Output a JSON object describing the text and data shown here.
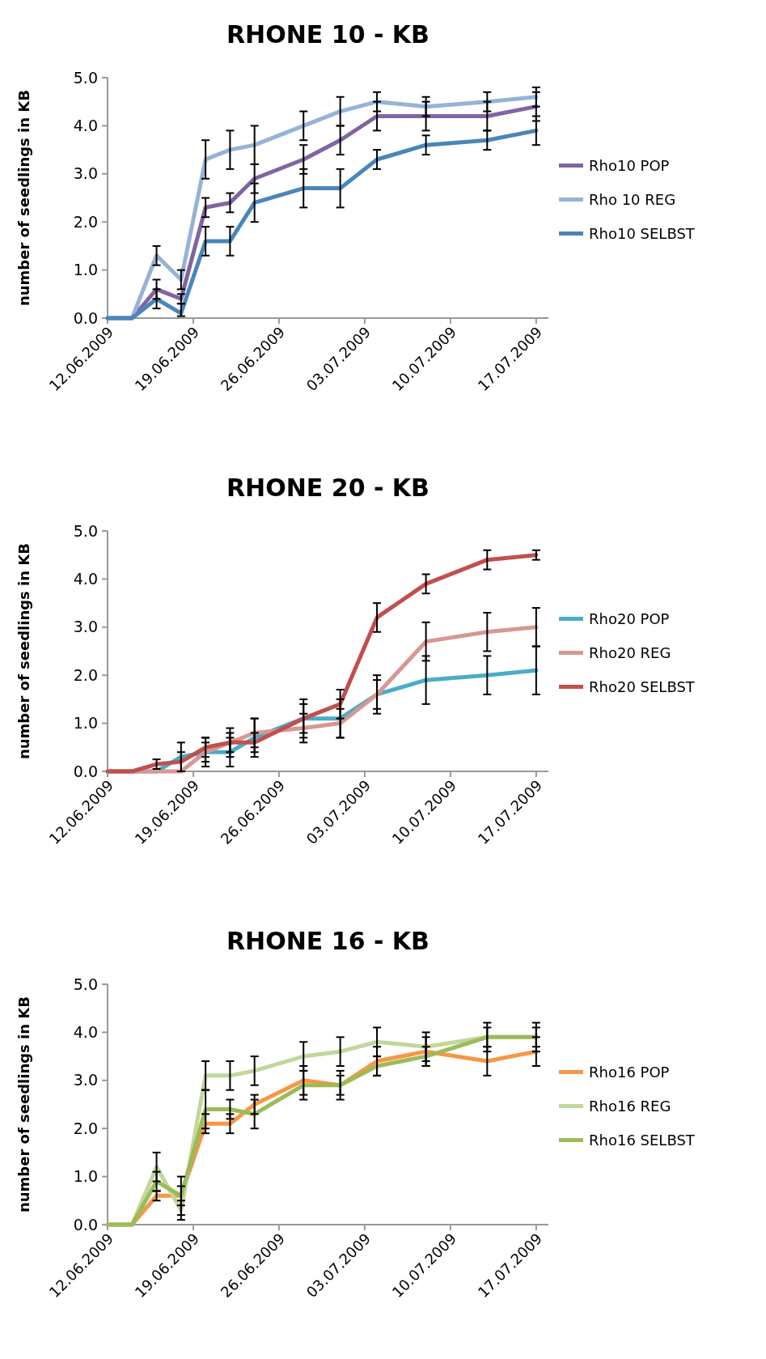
{
  "chart_data": [
    {
      "type": "line",
      "title": "RHONE 10 - KB",
      "ylabel": "number of seedlings in KB",
      "x": [
        "2009-06-12",
        "2009-06-14",
        "2009-06-16",
        "2009-06-18",
        "2009-06-20",
        "2009-06-22",
        "2009-06-24",
        "2009-06-28",
        "2009-07-01",
        "2009-07-04",
        "2009-07-08",
        "2009-07-13",
        "2009-07-17"
      ],
      "xlim": [
        "2009-06-12",
        "2009-07-18"
      ],
      "xticks": [
        {
          "value": "2009-06-12",
          "label": "12.06.2009"
        },
        {
          "value": "2009-06-19",
          "label": "19.06.2009"
        },
        {
          "value": "2009-06-26",
          "label": "26.06.2009"
        },
        {
          "value": "2009-07-03",
          "label": "03.07.2009"
        },
        {
          "value": "2009-07-10",
          "label": "10.07.2009"
        },
        {
          "value": "2009-07-17",
          "label": "17.07.2009"
        }
      ],
      "ylim": [
        0,
        5
      ],
      "yticks": [
        {
          "value": 0,
          "label": "0.0"
        },
        {
          "value": 1,
          "label": "1.0"
        },
        {
          "value": 2,
          "label": "2.0"
        },
        {
          "value": 3,
          "label": "3.0"
        },
        {
          "value": 4,
          "label": "4.0"
        },
        {
          "value": 5,
          "label": "5.0"
        }
      ],
      "legend": "right",
      "grid": false,
      "marker": "none",
      "line_style": "solid",
      "series": [
        {
          "name": "Rho10 POP",
          "color": "#8064a2",
          "values": [
            0,
            0,
            0.6,
            0.4,
            2.3,
            2.4,
            2.9,
            3.3,
            3.7,
            4.2,
            4.2,
            4.2,
            4.4
          ],
          "errors": [
            null,
            null,
            0.2,
            0.1,
            0.2,
            0.2,
            0.3,
            0.3,
            0.3,
            0.3,
            0.3,
            0.3,
            0.3
          ]
        },
        {
          "name": "Rho 10 REG",
          "color": "#95b3d7",
          "values": [
            0,
            0,
            1.3,
            0.8,
            3.3,
            3.5,
            3.6,
            4.0,
            4.3,
            4.5,
            4.4,
            4.5,
            4.6
          ],
          "errors": [
            null,
            null,
            0.2,
            0.2,
            0.4,
            0.4,
            0.4,
            0.3,
            0.3,
            0.2,
            0.2,
            0.2,
            0.2
          ]
        },
        {
          "name": "Rho10 SELBST",
          "color": "#4a86b8",
          "values": [
            0,
            0,
            0.4,
            0.1,
            1.6,
            1.6,
            2.4,
            2.7,
            2.7,
            3.3,
            3.6,
            3.7,
            3.9
          ],
          "errors": [
            null,
            null,
            0.2,
            [
              0.04,
              0.3
            ],
            0.3,
            0.3,
            0.4,
            0.4,
            0.4,
            0.2,
            0.2,
            0.2,
            0.3
          ]
        }
      ]
    },
    {
      "type": "line",
      "title": "RHONE 20 - KB",
      "ylabel": "number of seedlings in KB",
      "x": [
        "2009-06-12",
        "2009-06-14",
        "2009-06-16",
        "2009-06-18",
        "2009-06-20",
        "2009-06-22",
        "2009-06-24",
        "2009-06-28",
        "2009-07-01",
        "2009-07-04",
        "2009-07-08",
        "2009-07-13",
        "2009-07-17"
      ],
      "xlim": [
        "2009-06-12",
        "2009-07-18"
      ],
      "xticks": [
        {
          "value": "2009-06-12",
          "label": "12.06.2009"
        },
        {
          "value": "2009-06-19",
          "label": "19.06.2009"
        },
        {
          "value": "2009-06-26",
          "label": "26.06.2009"
        },
        {
          "value": "2009-07-03",
          "label": "03.07.2009"
        },
        {
          "value": "2009-07-10",
          "label": "10.07.2009"
        },
        {
          "value": "2009-07-17",
          "label": "17.07.2009"
        }
      ],
      "ylim": [
        0,
        5
      ],
      "yticks": [
        {
          "value": 0,
          "label": "0.0"
        },
        {
          "value": 1,
          "label": "1.0"
        },
        {
          "value": 2,
          "label": "2.0"
        },
        {
          "value": 3,
          "label": "3.0"
        },
        {
          "value": 4,
          "label": "4.0"
        },
        {
          "value": 5,
          "label": "5.0"
        }
      ],
      "legend": "right",
      "grid": false,
      "marker": "none",
      "line_style": "solid",
      "series": [
        {
          "name": "Rho20 POP",
          "color": "#4bacc6",
          "values": [
            0,
            0,
            0,
            0.3,
            0.4,
            0.4,
            0.7,
            1.1,
            1.1,
            1.6,
            1.9,
            2.0,
            2.1
          ],
          "errors": [
            null,
            null,
            null,
            0.3,
            0.2,
            0.3,
            0.4,
            0.4,
            0.4,
            0.4,
            0.5,
            0.4,
            0.5
          ]
        },
        {
          "name": "Rho20 REG",
          "color": "#d99694",
          "values": [
            0,
            0,
            0,
            0,
            0.4,
            0.6,
            0.8,
            0.9,
            1.0,
            1.6,
            2.7,
            2.9,
            3.0
          ],
          "errors": [
            null,
            null,
            null,
            null,
            0.3,
            0.3,
            0.3,
            0.3,
            0.3,
            0.3,
            0.4,
            0.4,
            0.4
          ]
        },
        {
          "name": "Rho20 SELBST",
          "color": "#c0504d",
          "values": [
            0,
            0,
            0.15,
            0.2,
            0.5,
            0.6,
            0.6,
            1.1,
            1.4,
            3.2,
            3.9,
            4.4,
            4.5
          ],
          "errors": [
            null,
            null,
            0.1,
            0.2,
            0.2,
            0.2,
            0.2,
            0.3,
            0.3,
            0.3,
            0.2,
            0.2,
            0.1
          ]
        }
      ]
    },
    {
      "type": "line",
      "title": "RHONE 16 - KB",
      "ylabel": "number of seedlings in KB",
      "x": [
        "2009-06-12",
        "2009-06-14",
        "2009-06-16",
        "2009-06-18",
        "2009-06-20",
        "2009-06-22",
        "2009-06-24",
        "2009-06-28",
        "2009-07-01",
        "2009-07-04",
        "2009-07-08",
        "2009-07-13",
        "2009-07-17"
      ],
      "xlim": [
        "2009-06-12",
        "2009-07-18"
      ],
      "xticks": [
        {
          "value": "2009-06-12",
          "label": "12.06.2009"
        },
        {
          "value": "2009-06-19",
          "label": "19.06.2009"
        },
        {
          "value": "2009-06-26",
          "label": "26.06.2009"
        },
        {
          "value": "2009-07-03",
          "label": "03.07.2009"
        },
        {
          "value": "2009-07-10",
          "label": "10.07.2009"
        },
        {
          "value": "2009-07-17",
          "label": "17.07.2009"
        }
      ],
      "ylim": [
        0,
        5
      ],
      "yticks": [
        {
          "value": 0,
          "label": "0.0"
        },
        {
          "value": 1,
          "label": "1.0"
        },
        {
          "value": 2,
          "label": "2.0"
        },
        {
          "value": 3,
          "label": "3.0"
        },
        {
          "value": 4,
          "label": "4.0"
        },
        {
          "value": 5,
          "label": "5.0"
        }
      ],
      "legend": "right",
      "grid": false,
      "marker": "none",
      "line_style": "solid",
      "series": [
        {
          "name": "Rho16 POP",
          "color": "#f79646",
          "values": [
            0,
            0,
            0.6,
            0.6,
            2.1,
            2.1,
            2.5,
            3.0,
            2.9,
            3.4,
            3.6,
            3.4,
            3.6
          ],
          "errors": [
            null,
            null,
            0.1,
            0.2,
            0.2,
            0.2,
            0.2,
            0.3,
            0.3,
            0.3,
            0.3,
            0.3,
            0.3
          ]
        },
        {
          "name": "Rho16 REG",
          "color": "#c3d69b",
          "values": [
            0,
            0,
            1.2,
            0.3,
            3.1,
            3.1,
            3.2,
            3.5,
            3.6,
            3.8,
            3.7,
            3.9,
            3.9
          ],
          "errors": [
            null,
            null,
            0.3,
            0.2,
            0.3,
            0.3,
            0.3,
            0.3,
            0.3,
            0.3,
            0.3,
            0.3,
            0.3
          ]
        },
        {
          "name": "Rho16 SELBST",
          "color": "#9bbb59",
          "values": [
            0,
            0,
            0.9,
            0.6,
            2.4,
            2.4,
            2.3,
            2.9,
            2.9,
            3.3,
            3.5,
            3.9,
            3.9
          ],
          "errors": [
            null,
            null,
            0.2,
            0.4,
            0.4,
            0.2,
            0.3,
            0.3,
            0.2,
            0.2,
            0.2,
            0.2,
            0.2
          ]
        }
      ]
    }
  ]
}
